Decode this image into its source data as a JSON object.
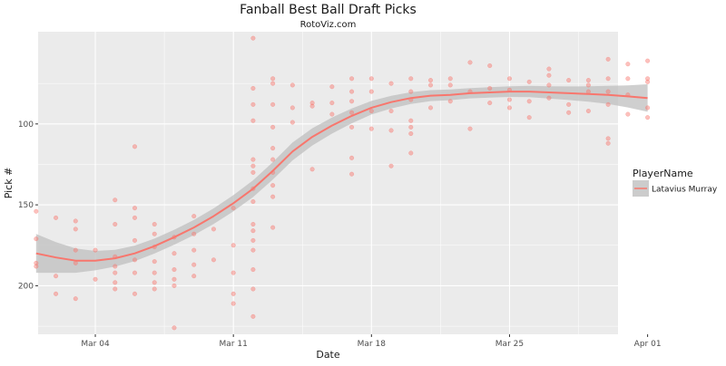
{
  "chart_data": {
    "type": "scatter",
    "title": "Fanball Best Ball Draft Picks",
    "subtitle": "RotoViz.com",
    "xlabel": "Date",
    "ylabel": "Pick #",
    "x_ticks": [
      "Mar 04",
      "Mar 11",
      "Mar 18",
      "Mar 25",
      "Apr 01"
    ],
    "y_ticks": [
      100,
      150,
      200
    ],
    "x_range_days": [
      -2.9,
      26.5
    ],
    "y_range_reversed": [
      230,
      43
    ],
    "grid": true,
    "legend": {
      "title": "PlayerName",
      "position": "right",
      "entries": [
        "Latavius Murray"
      ]
    },
    "colors": {
      "series": "#F8766D",
      "panel": "#EBEBEB",
      "grid": "#FFFFFF",
      "band": "#BFBFBF"
    },
    "series": [
      {
        "name": "Latavius Murray",
        "points": [
          [
            "2018-03-01",
            154
          ],
          [
            "2018-03-01",
            171
          ],
          [
            "2018-03-01",
            186
          ],
          [
            "2018-03-01",
            188
          ],
          [
            "2018-03-02",
            158
          ],
          [
            "2018-03-02",
            194
          ],
          [
            "2018-03-02",
            205
          ],
          [
            "2018-03-03",
            160
          ],
          [
            "2018-03-03",
            165
          ],
          [
            "2018-03-03",
            178
          ],
          [
            "2018-03-03",
            186
          ],
          [
            "2018-03-03",
            208
          ],
          [
            "2018-03-04",
            178
          ],
          [
            "2018-03-04",
            196
          ],
          [
            "2018-03-05",
            147
          ],
          [
            "2018-03-05",
            162
          ],
          [
            "2018-03-05",
            182
          ],
          [
            "2018-03-05",
            188
          ],
          [
            "2018-03-05",
            192
          ],
          [
            "2018-03-05",
            198
          ],
          [
            "2018-03-05",
            202
          ],
          [
            "2018-03-06",
            114
          ],
          [
            "2018-03-06",
            152
          ],
          [
            "2018-03-06",
            158
          ],
          [
            "2018-03-06",
            172
          ],
          [
            "2018-03-06",
            184
          ],
          [
            "2018-03-06",
            192
          ],
          [
            "2018-03-06",
            205
          ],
          [
            "2018-03-07",
            162
          ],
          [
            "2018-03-07",
            168
          ],
          [
            "2018-03-07",
            176
          ],
          [
            "2018-03-07",
            185
          ],
          [
            "2018-03-07",
            192
          ],
          [
            "2018-03-07",
            198
          ],
          [
            "2018-03-07",
            202
          ],
          [
            "2018-03-08",
            170
          ],
          [
            "2018-03-08",
            180
          ],
          [
            "2018-03-08",
            190
          ],
          [
            "2018-03-08",
            196
          ],
          [
            "2018-03-08",
            200
          ],
          [
            "2018-03-08",
            226
          ],
          [
            "2018-03-09",
            157
          ],
          [
            "2018-03-09",
            168
          ],
          [
            "2018-03-09",
            178
          ],
          [
            "2018-03-09",
            187
          ],
          [
            "2018-03-09",
            194
          ],
          [
            "2018-03-10",
            165
          ],
          [
            "2018-03-10",
            184
          ],
          [
            "2018-03-11",
            152
          ],
          [
            "2018-03-11",
            175
          ],
          [
            "2018-03-11",
            192
          ],
          [
            "2018-03-11",
            205
          ],
          [
            "2018-03-11",
            211
          ],
          [
            "2018-03-12",
            47
          ],
          [
            "2018-03-12",
            78
          ],
          [
            "2018-03-12",
            88
          ],
          [
            "2018-03-12",
            98
          ],
          [
            "2018-03-12",
            122
          ],
          [
            "2018-03-12",
            126
          ],
          [
            "2018-03-12",
            130
          ],
          [
            "2018-03-12",
            140
          ],
          [
            "2018-03-12",
            148
          ],
          [
            "2018-03-12",
            162
          ],
          [
            "2018-03-12",
            166
          ],
          [
            "2018-03-12",
            172
          ],
          [
            "2018-03-12",
            178
          ],
          [
            "2018-03-12",
            190
          ],
          [
            "2018-03-12",
            202
          ],
          [
            "2018-03-12",
            219
          ],
          [
            "2018-03-13",
            72
          ],
          [
            "2018-03-13",
            75
          ],
          [
            "2018-03-13",
            88
          ],
          [
            "2018-03-13",
            102
          ],
          [
            "2018-03-13",
            115
          ],
          [
            "2018-03-13",
            122
          ],
          [
            "2018-03-13",
            130
          ],
          [
            "2018-03-13",
            138
          ],
          [
            "2018-03-13",
            145
          ],
          [
            "2018-03-13",
            164
          ],
          [
            "2018-03-14",
            76
          ],
          [
            "2018-03-14",
            90
          ],
          [
            "2018-03-14",
            99
          ],
          [
            "2018-03-15",
            87
          ],
          [
            "2018-03-15",
            89
          ],
          [
            "2018-03-15",
            128
          ],
          [
            "2018-03-16",
            77
          ],
          [
            "2018-03-16",
            87
          ],
          [
            "2018-03-16",
            94
          ],
          [
            "2018-03-17",
            72
          ],
          [
            "2018-03-17",
            80
          ],
          [
            "2018-03-17",
            86
          ],
          [
            "2018-03-17",
            93
          ],
          [
            "2018-03-17",
            102
          ],
          [
            "2018-03-17",
            121
          ],
          [
            "2018-03-17",
            131
          ],
          [
            "2018-03-18",
            72
          ],
          [
            "2018-03-18",
            80
          ],
          [
            "2018-03-18",
            92
          ],
          [
            "2018-03-18",
            103
          ],
          [
            "2018-03-19",
            75
          ],
          [
            "2018-03-19",
            92
          ],
          [
            "2018-03-19",
            104
          ],
          [
            "2018-03-19",
            126
          ],
          [
            "2018-03-20",
            72
          ],
          [
            "2018-03-20",
            80
          ],
          [
            "2018-03-20",
            85
          ],
          [
            "2018-03-20",
            98
          ],
          [
            "2018-03-20",
            102
          ],
          [
            "2018-03-20",
            106
          ],
          [
            "2018-03-20",
            118
          ],
          [
            "2018-03-21",
            73
          ],
          [
            "2018-03-21",
            76
          ],
          [
            "2018-03-21",
            90
          ],
          [
            "2018-03-22",
            72
          ],
          [
            "2018-03-22",
            76
          ],
          [
            "2018-03-22",
            86
          ],
          [
            "2018-03-23",
            62
          ],
          [
            "2018-03-23",
            80
          ],
          [
            "2018-03-23",
            103
          ],
          [
            "2018-03-24",
            64
          ],
          [
            "2018-03-24",
            78
          ],
          [
            "2018-03-24",
            87
          ],
          [
            "2018-03-25",
            72
          ],
          [
            "2018-03-25",
            79
          ],
          [
            "2018-03-25",
            85
          ],
          [
            "2018-03-25",
            90
          ],
          [
            "2018-03-26",
            74
          ],
          [
            "2018-03-26",
            86
          ],
          [
            "2018-03-26",
            96
          ],
          [
            "2018-03-27",
            66
          ],
          [
            "2018-03-27",
            70
          ],
          [
            "2018-03-27",
            76
          ],
          [
            "2018-03-27",
            84
          ],
          [
            "2018-03-28",
            73
          ],
          [
            "2018-03-28",
            88
          ],
          [
            "2018-03-28",
            93
          ],
          [
            "2018-03-29",
            73
          ],
          [
            "2018-03-29",
            76
          ],
          [
            "2018-03-29",
            80
          ],
          [
            "2018-03-29",
            92
          ],
          [
            "2018-03-30",
            60
          ],
          [
            "2018-03-30",
            72
          ],
          [
            "2018-03-30",
            80
          ],
          [
            "2018-03-30",
            88
          ],
          [
            "2018-03-30",
            109
          ],
          [
            "2018-03-30",
            112
          ],
          [
            "2018-03-31",
            63
          ],
          [
            "2018-03-31",
            72
          ],
          [
            "2018-03-31",
            82
          ],
          [
            "2018-03-31",
            94
          ],
          [
            "2018-04-01",
            61
          ],
          [
            "2018-04-01",
            72
          ],
          [
            "2018-04-01",
            74
          ],
          [
            "2018-04-01",
            90
          ],
          [
            "2018-04-01",
            96
          ]
        ],
        "smooth": [
          [
            "2018-03-01",
            180
          ],
          [
            "2018-03-02",
            182.5
          ],
          [
            "2018-03-03",
            184.5
          ],
          [
            "2018-03-04",
            184.5
          ],
          [
            "2018-03-05",
            183
          ],
          [
            "2018-03-06",
            180
          ],
          [
            "2018-03-07",
            175.5
          ],
          [
            "2018-03-08",
            170
          ],
          [
            "2018-03-09",
            164
          ],
          [
            "2018-03-10",
            157
          ],
          [
            "2018-03-11",
            149
          ],
          [
            "2018-03-12",
            140
          ],
          [
            "2018-03-13",
            129
          ],
          [
            "2018-03-14",
            117
          ],
          [
            "2018-03-15",
            108
          ],
          [
            "2018-03-16",
            101
          ],
          [
            "2018-03-17",
            95
          ],
          [
            "2018-03-18",
            90
          ],
          [
            "2018-03-19",
            86.5
          ],
          [
            "2018-03-20",
            84
          ],
          [
            "2018-03-21",
            82.5
          ],
          [
            "2018-03-22",
            82
          ],
          [
            "2018-03-23",
            81
          ],
          [
            "2018-03-24",
            80.5
          ],
          [
            "2018-03-25",
            80
          ],
          [
            "2018-03-26",
            80
          ],
          [
            "2018-03-27",
            80.5
          ],
          [
            "2018-03-28",
            81
          ],
          [
            "2018-03-29",
            81.5
          ],
          [
            "2018-03-30",
            82
          ],
          [
            "2018-03-31",
            83
          ],
          [
            "2018-04-01",
            84
          ]
        ],
        "band_halfwidth": [
          12,
          9.5,
          7.5,
          6,
          5.2,
          4.8,
          4.6,
          4.6,
          4.7,
          4.8,
          5,
          5.2,
          5.4,
          5.5,
          5.3,
          5,
          4.6,
          4.2,
          3.9,
          3.6,
          3.4,
          3.3,
          3.2,
          3.2,
          3.3,
          3.5,
          3.8,
          4.2,
          4.8,
          5.6,
          6.8,
          8.5
        ]
      }
    ]
  }
}
